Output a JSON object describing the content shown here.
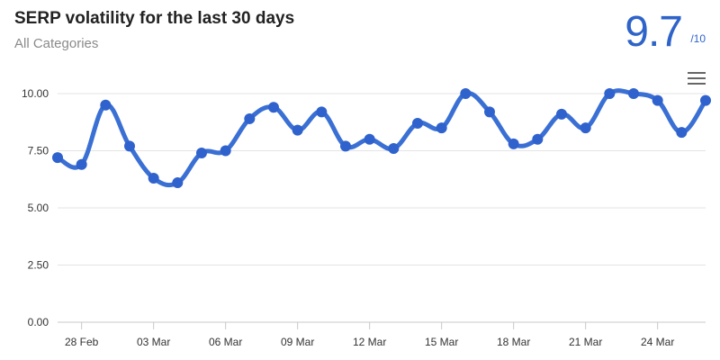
{
  "header": {
    "title": "SERP volatility for the last 30 days",
    "subtitle": "All Categories"
  },
  "score": {
    "value": "9.7",
    "max_label": "/10"
  },
  "menu": {
    "icon": "hamburger-menu-icon"
  },
  "colors": {
    "series": "#3a6fd4",
    "accent": "#2e63c9",
    "grid": "#e3e3e3"
  },
  "chart_data": {
    "type": "line",
    "title": "SERP volatility for the last 30 days",
    "subtitle": "All Categories",
    "ylim": [
      0,
      10
    ],
    "y_ticks": [
      "0.00",
      "2.50",
      "5.00",
      "7.50",
      "10.00"
    ],
    "y_tick_values": [
      0,
      2.5,
      5,
      7.5,
      10
    ],
    "x_tick_labels": [
      "28 Feb",
      "03 Mar",
      "06 Mar",
      "09 Mar",
      "12 Mar",
      "15 Mar",
      "18 Mar",
      "21 Mar",
      "24 Mar"
    ],
    "x_tick_index": [
      1,
      4,
      7,
      10,
      13,
      16,
      19,
      22,
      25
    ],
    "x": [
      "27 Feb",
      "28 Feb",
      "01 Mar",
      "02 Mar",
      "03 Mar",
      "04 Mar",
      "05 Mar",
      "06 Mar",
      "07 Mar",
      "08 Mar",
      "09 Mar",
      "10 Mar",
      "11 Mar",
      "12 Mar",
      "13 Mar",
      "14 Mar",
      "15 Mar",
      "16 Mar",
      "17 Mar",
      "18 Mar",
      "19 Mar",
      "20 Mar",
      "21 Mar",
      "22 Mar",
      "23 Mar",
      "24 Mar",
      "25 Mar",
      "26 Mar"
    ],
    "values": [
      7.2,
      6.9,
      9.5,
      7.7,
      6.3,
      6.1,
      7.4,
      7.5,
      8.9,
      9.4,
      8.4,
      9.2,
      7.7,
      8.0,
      7.6,
      8.7,
      8.5,
      10.0,
      9.2,
      7.8,
      8.0,
      9.1,
      8.5,
      10.0,
      10.0,
      9.7,
      8.3,
      9.7
    ],
    "grid": true,
    "legend": "none"
  }
}
